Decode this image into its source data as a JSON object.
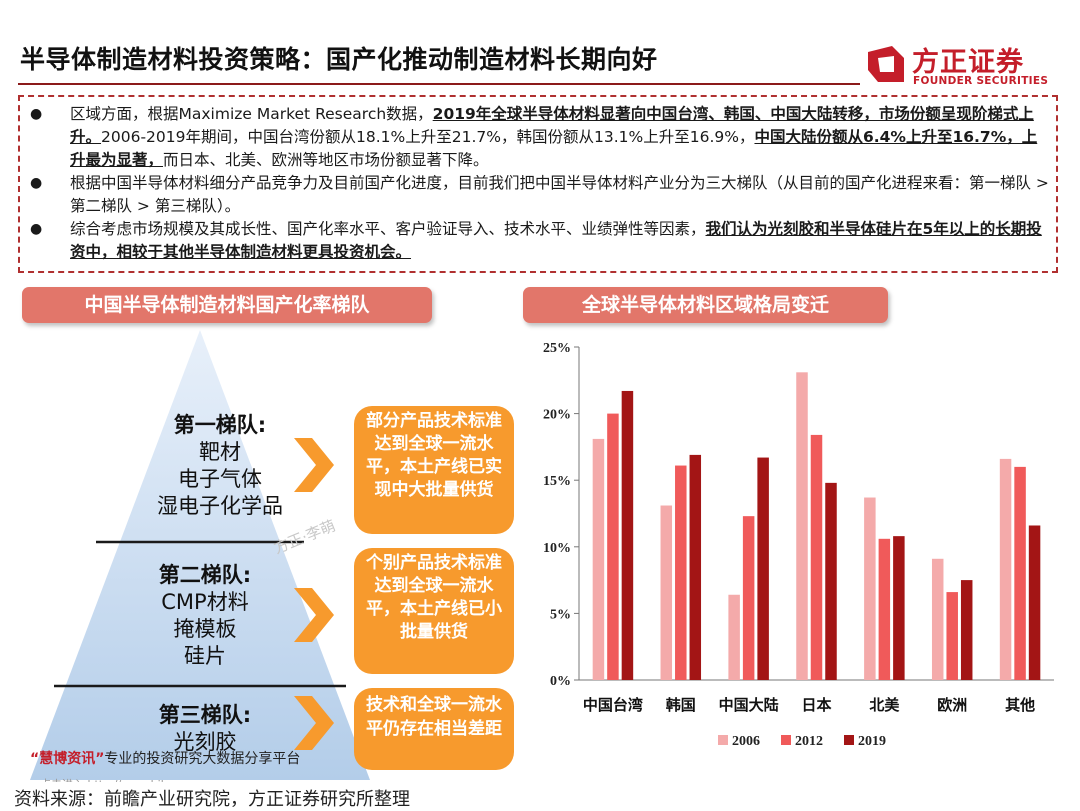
{
  "header": {
    "title": "半导体制造材料投资策略：国产化推动制造材料长期向好",
    "logo_cn": "方正证券",
    "logo_en": "FOUNDER SECURITIES"
  },
  "summary": {
    "bullet1_a": "区域方面，根据Maximize Market Research数据，",
    "bullet1_b": "2019年全球半导体材料显著向中国台湾、韩国、中国大陆转移，市场份额呈现阶梯式上升。",
    "bullet1_c": "2006-2019年期间，中国台湾份额从18.1%上升至21.7%，韩国份额从13.1%上升至16.9%，",
    "bullet1_d": "中国大陆份额从6.4%上升至16.7%，上升最为显著，",
    "bullet1_e": "而日本、北美、欧洲等地区市场份额显著下降。",
    "bullet2": "根据中国半导体材料细分产品竞争力及目前国产化进度，目前我们把中国半导体材料产业分为三大梯队（从目前的国产化进程来看：第一梯队 > 第二梯队 > 第三梯队）。",
    "bullet3_a": "综合考虑市场规模及其成长性、国产化率水平、客户验证导入、技术水平、业绩弹性等因素，",
    "bullet3_b": "我们认为光刻胶和半导体硅片在5年以上的长期投资中，相较于其他半导体制造材料更具投资机会。",
    "bullet_glyph": "●"
  },
  "left_section": {
    "title": "中国半导体制造材料国产化率梯队",
    "tiers": [
      {
        "name": "第一梯队:",
        "items": [
          "靶材",
          "电子气体",
          "湿电子化学品"
        ],
        "desc": "部分产品技术标准达到全球一流水平，本土产线已实现中大批量供货"
      },
      {
        "name": "第二梯队:",
        "items": [
          "CMP材料",
          "掩模板",
          "硅片"
        ],
        "desc": "个别产品技术标准达到全球一流水平，本土产线已小批量供货"
      },
      {
        "name": "第三梯队:",
        "items": [
          "光刻胶"
        ],
        "desc": "技术和全球一流水平仍存在相当差距"
      }
    ],
    "watermark": "方正·李萌",
    "tagline_quote": "“慧博资讯”",
    "tagline_rest": "专业的投资研究大数据分享平台",
    "watermark2": "点击进入 http://www.hibor.com.cn"
  },
  "right_section": {
    "title": "全球半导体材料区域格局变迁"
  },
  "chart_data": {
    "type": "bar",
    "title": "",
    "categories": [
      "中国台湾",
      "韩国",
      "中国大陆",
      "日本",
      "北美",
      "欧洲",
      "其他"
    ],
    "series": [
      {
        "name": "2006",
        "values": [
          18.1,
          13.1,
          6.4,
          23.1,
          13.7,
          9.1,
          16.6
        ],
        "color": "#f4aaaa"
      },
      {
        "name": "2012",
        "values": [
          20.0,
          16.1,
          12.3,
          18.4,
          10.6,
          6.6,
          16.0
        ],
        "color": "#f05a5a"
      },
      {
        "name": "2019",
        "values": [
          21.7,
          16.9,
          16.7,
          14.8,
          10.8,
          7.5,
          11.6
        ],
        "color": "#a31515"
      }
    ],
    "yticks": [
      "0%",
      "5%",
      "10%",
      "15%",
      "20%",
      "25%"
    ],
    "ylim": [
      0,
      25
    ],
    "legend_position": "bottom",
    "grid": false
  },
  "footer": {
    "source": "资料来源：前瞻产业研究院，方正证券研究所整理"
  }
}
